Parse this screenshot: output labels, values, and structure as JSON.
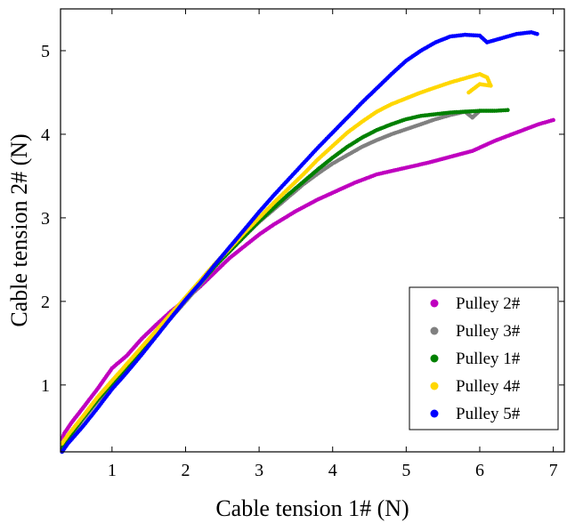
{
  "chart_data": {
    "type": "scatter",
    "xlabel": "Cable tension 1# (N)",
    "ylabel": "Cable tension 2# (N)",
    "xlim": [
      0.3,
      7.15
    ],
    "ylim": [
      0.2,
      5.5
    ],
    "xticks": [
      1,
      2,
      3,
      4,
      5,
      6,
      7
    ],
    "yticks": [
      1,
      2,
      3,
      4,
      5
    ],
    "grid": false,
    "legend_position": "bottom-right",
    "series": [
      {
        "name": "Pulley 2#",
        "color": "#BF00BF",
        "points": [
          [
            0.32,
            0.35
          ],
          [
            0.35,
            0.42
          ],
          [
            0.45,
            0.55
          ],
          [
            0.6,
            0.72
          ],
          [
            0.8,
            0.95
          ],
          [
            1.0,
            1.2
          ],
          [
            1.2,
            1.35
          ],
          [
            1.4,
            1.55
          ],
          [
            1.6,
            1.72
          ],
          [
            1.8,
            1.88
          ],
          [
            2.0,
            2.02
          ],
          [
            2.2,
            2.18
          ],
          [
            2.4,
            2.35
          ],
          [
            2.6,
            2.52
          ],
          [
            2.8,
            2.66
          ],
          [
            3.0,
            2.8
          ],
          [
            3.2,
            2.92
          ],
          [
            3.5,
            3.08
          ],
          [
            3.8,
            3.22
          ],
          [
            4.0,
            3.3
          ],
          [
            4.3,
            3.42
          ],
          [
            4.6,
            3.52
          ],
          [
            5.0,
            3.6
          ],
          [
            5.3,
            3.66
          ],
          [
            5.6,
            3.73
          ],
          [
            5.9,
            3.8
          ],
          [
            6.2,
            3.92
          ],
          [
            6.5,
            4.02
          ],
          [
            6.8,
            4.12
          ],
          [
            7.0,
            4.17
          ]
        ]
      },
      {
        "name": "Pulley 3#",
        "color": "#808080",
        "points": [
          [
            0.32,
            0.22
          ],
          [
            0.4,
            0.35
          ],
          [
            0.6,
            0.58
          ],
          [
            0.8,
            0.8
          ],
          [
            1.0,
            1.0
          ],
          [
            1.2,
            1.2
          ],
          [
            1.4,
            1.4
          ],
          [
            1.6,
            1.6
          ],
          [
            1.8,
            1.8
          ],
          [
            2.0,
            2.0
          ],
          [
            2.2,
            2.2
          ],
          [
            2.4,
            2.42
          ],
          [
            2.6,
            2.6
          ],
          [
            2.8,
            2.78
          ],
          [
            3.0,
            2.95
          ],
          [
            3.2,
            3.1
          ],
          [
            3.4,
            3.25
          ],
          [
            3.6,
            3.4
          ],
          [
            3.8,
            3.53
          ],
          [
            4.0,
            3.65
          ],
          [
            4.2,
            3.75
          ],
          [
            4.4,
            3.85
          ],
          [
            4.6,
            3.93
          ],
          [
            4.8,
            4.0
          ],
          [
            5.0,
            4.06
          ],
          [
            5.2,
            4.12
          ],
          [
            5.4,
            4.18
          ],
          [
            5.6,
            4.23
          ],
          [
            5.8,
            4.27
          ],
          [
            5.9,
            4.2
          ],
          [
            6.0,
            4.28
          ]
        ]
      },
      {
        "name": "Pulley 1#",
        "color": "#008000",
        "points": [
          [
            0.32,
            0.24
          ],
          [
            0.4,
            0.36
          ],
          [
            0.6,
            0.6
          ],
          [
            0.8,
            0.82
          ],
          [
            1.0,
            1.02
          ],
          [
            1.2,
            1.22
          ],
          [
            1.4,
            1.42
          ],
          [
            1.6,
            1.62
          ],
          [
            1.8,
            1.82
          ],
          [
            2.0,
            2.02
          ],
          [
            2.2,
            2.22
          ],
          [
            2.4,
            2.42
          ],
          [
            2.6,
            2.6
          ],
          [
            2.8,
            2.78
          ],
          [
            3.0,
            2.96
          ],
          [
            3.2,
            3.12
          ],
          [
            3.4,
            3.28
          ],
          [
            3.6,
            3.43
          ],
          [
            3.8,
            3.58
          ],
          [
            4.0,
            3.72
          ],
          [
            4.2,
            3.85
          ],
          [
            4.4,
            3.96
          ],
          [
            4.6,
            4.05
          ],
          [
            4.8,
            4.12
          ],
          [
            5.0,
            4.18
          ],
          [
            5.2,
            4.22
          ],
          [
            5.4,
            4.24
          ],
          [
            5.6,
            4.26
          ],
          [
            5.8,
            4.27
          ],
          [
            6.0,
            4.28
          ],
          [
            6.2,
            4.28
          ],
          [
            6.38,
            4.29
          ]
        ]
      },
      {
        "name": "Pulley 4#",
        "color": "#FFD700",
        "points": [
          [
            0.32,
            0.3
          ],
          [
            0.4,
            0.4
          ],
          [
            0.6,
            0.62
          ],
          [
            0.8,
            0.85
          ],
          [
            1.0,
            1.05
          ],
          [
            1.2,
            1.25
          ],
          [
            1.4,
            1.45
          ],
          [
            1.6,
            1.65
          ],
          [
            1.8,
            1.85
          ],
          [
            2.0,
            2.05
          ],
          [
            2.2,
            2.25
          ],
          [
            2.4,
            2.45
          ],
          [
            2.6,
            2.63
          ],
          [
            2.8,
            2.82
          ],
          [
            3.0,
            3.0
          ],
          [
            3.2,
            3.18
          ],
          [
            3.4,
            3.35
          ],
          [
            3.6,
            3.52
          ],
          [
            3.8,
            3.7
          ],
          [
            4.0,
            3.86
          ],
          [
            4.2,
            4.02
          ],
          [
            4.4,
            4.15
          ],
          [
            4.6,
            4.27
          ],
          [
            4.8,
            4.36
          ],
          [
            5.0,
            4.43
          ],
          [
            5.2,
            4.5
          ],
          [
            5.4,
            4.56
          ],
          [
            5.6,
            4.62
          ],
          [
            5.8,
            4.67
          ],
          [
            6.0,
            4.72
          ],
          [
            6.1,
            4.68
          ],
          [
            6.15,
            4.58
          ],
          [
            6.0,
            4.6
          ],
          [
            5.85,
            4.5
          ]
        ]
      },
      {
        "name": "Pulley 5#",
        "color": "#0000FF",
        "points": [
          [
            0.32,
            0.2
          ],
          [
            0.4,
            0.3
          ],
          [
            0.6,
            0.5
          ],
          [
            0.8,
            0.72
          ],
          [
            1.0,
            0.95
          ],
          [
            1.2,
            1.15
          ],
          [
            1.4,
            1.36
          ],
          [
            1.6,
            1.58
          ],
          [
            1.8,
            1.8
          ],
          [
            2.0,
            2.02
          ],
          [
            2.2,
            2.22
          ],
          [
            2.4,
            2.44
          ],
          [
            2.6,
            2.65
          ],
          [
            2.8,
            2.86
          ],
          [
            3.0,
            3.07
          ],
          [
            3.2,
            3.27
          ],
          [
            3.4,
            3.46
          ],
          [
            3.6,
            3.65
          ],
          [
            3.8,
            3.84
          ],
          [
            4.0,
            4.02
          ],
          [
            4.2,
            4.2
          ],
          [
            4.4,
            4.38
          ],
          [
            4.6,
            4.55
          ],
          [
            4.8,
            4.72
          ],
          [
            5.0,
            4.88
          ],
          [
            5.2,
            5.0
          ],
          [
            5.4,
            5.1
          ],
          [
            5.6,
            5.17
          ],
          [
            5.8,
            5.19
          ],
          [
            6.0,
            5.18
          ],
          [
            6.1,
            5.1
          ],
          [
            6.3,
            5.15
          ],
          [
            6.5,
            5.2
          ],
          [
            6.7,
            5.22
          ],
          [
            6.78,
            5.2
          ]
        ]
      }
    ]
  }
}
